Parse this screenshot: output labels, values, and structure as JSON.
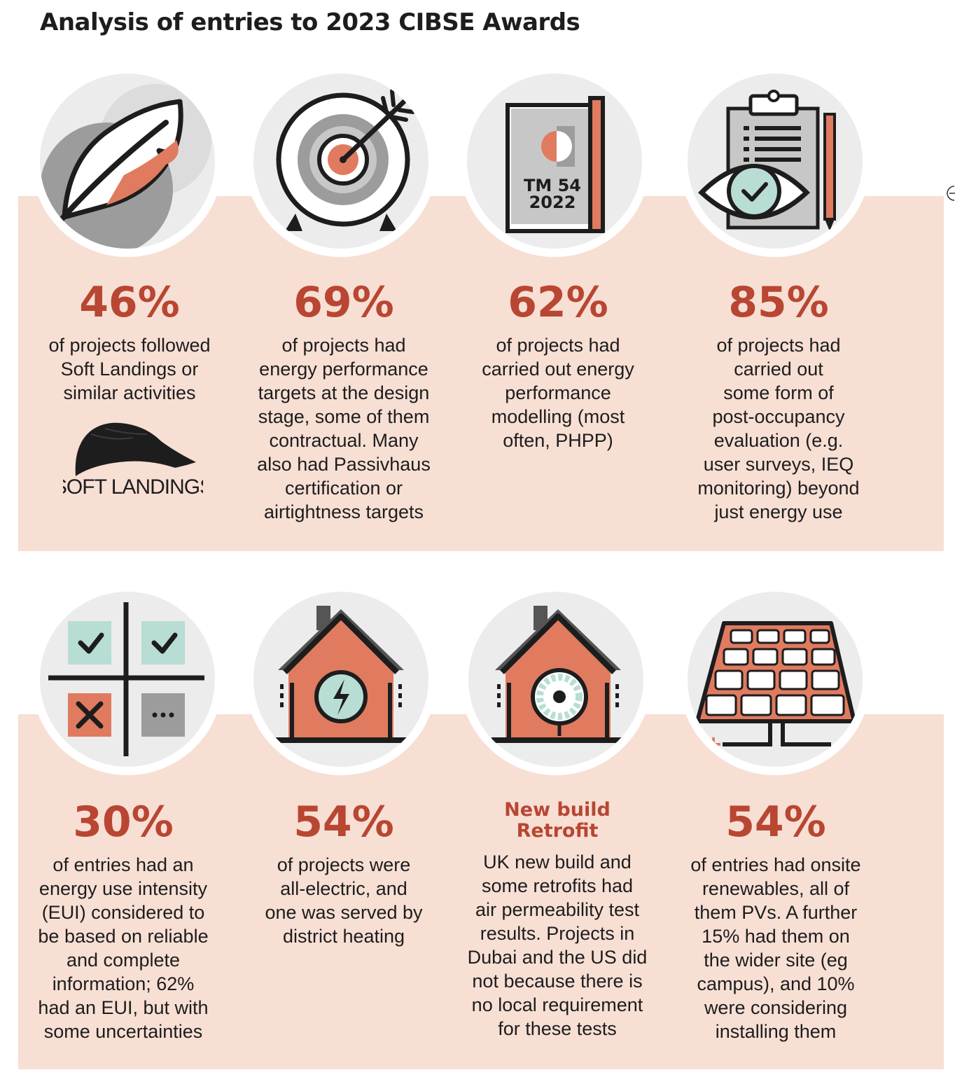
{
  "title": "Analysis of entries to 2023 CIBSE Awards",
  "colors": {
    "accent": "#b84632",
    "icon_orange": "#e07b60",
    "band": "#f7dfd4",
    "mint": "#b8ddd5",
    "grey": "#9c9c9c"
  },
  "stats_row1": [
    {
      "value": "46%",
      "text": "of projects followed\nSoft Landings or\nsimilar activities",
      "icon": "feather-icon"
    },
    {
      "value": "69%",
      "text": "of projects had\nenergy performance\ntargets at the design\nstage, some of them\ncontractual. Many\nalso had Passivhaus\ncertification or\nairtightness targets",
      "icon": "target-icon"
    },
    {
      "value": "62%",
      "text": "of projects had\ncarried out energy\nperformance\nmodelling (most\noften, PHPP)",
      "icon": "book-icon"
    },
    {
      "value": "85%",
      "text": "of projects had\ncarried out\nsome form of\npost-occupancy\nevaluation (e.g.\nuser surveys, IEQ\nmonitoring) beyond\njust energy use",
      "icon": "clipboard-eye-icon"
    }
  ],
  "stats_row2": [
    {
      "value": "30%",
      "text": "of entries had an\nenergy use intensity\n(EUI) considered to\nbe based on reliable\nand complete\ninformation; 62%\nhad an EUI, but with\nsome uncertainties",
      "icon": "checklist-grid-icon"
    },
    {
      "value": "54%",
      "text": "of projects were\nall-electric, and\none was served by\ndistrict heating",
      "icon": "electric-house-icon"
    },
    {
      "value_line1": "New build",
      "value_line2": "Retrofit",
      "text": "UK new build and\nsome retrofits had\nair permeability test\nresults. Projects  in\nDubai and the US did\nnot because there is\nno local requirement\nfor these tests",
      "icon": "fan-house-icon"
    },
    {
      "value": "54%",
      "text": "of entries had onsite\nrenewables, all of\nthem PVs. A further\n15% had them on\nthe wider site (eg\ncampus), and 10%\nwere considering\ninstalling them",
      "icon": "solar-panel-icon"
    }
  ],
  "book": {
    "line1": "TM 54",
    "line2": "2022"
  },
  "logo_text": "SOFT LANDINGS",
  "panel": {
    "plus": "+",
    "minus": "−"
  }
}
